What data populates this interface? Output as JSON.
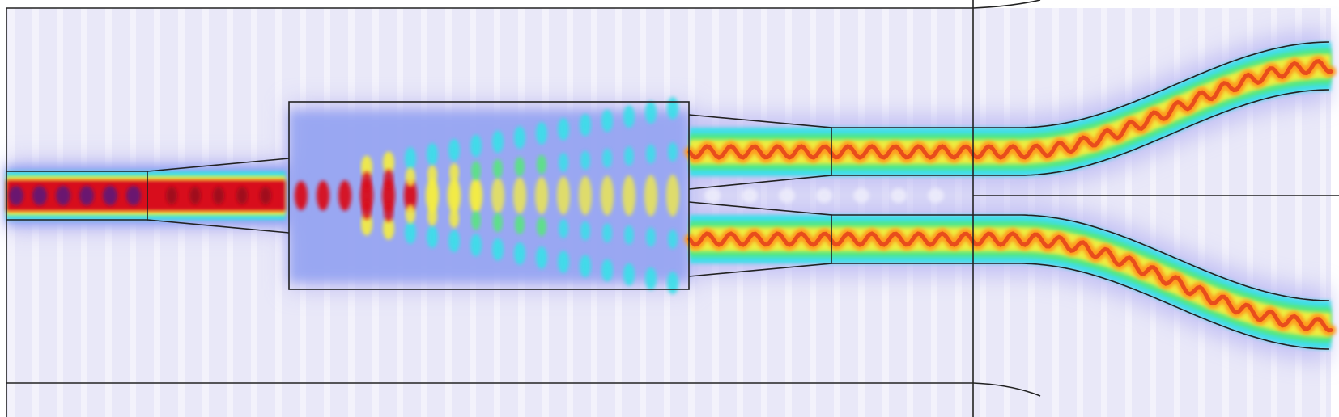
{
  "figure": {
    "description_visible_text": [],
    "colors": {
      "background_field": "#e3e2f6",
      "background_field_light": "#f1f0fb",
      "halo": "#b7b4f2",
      "mid_blue": "#8fa0f2",
      "cyan": "#38e0e8",
      "green": "#55e879",
      "yellow": "#f6ee3c",
      "orange": "#ff9a1e",
      "red": "#d8101a",
      "dark_core": "#6a1470",
      "outline": "#222222"
    },
    "components": [
      "input-waveguide",
      "input-taper",
      "mmi-section",
      "output-taper-upper",
      "output-taper-lower",
      "straight-arm-upper",
      "straight-arm-lower",
      "s-bend-upper",
      "s-bend-lower"
    ]
  }
}
